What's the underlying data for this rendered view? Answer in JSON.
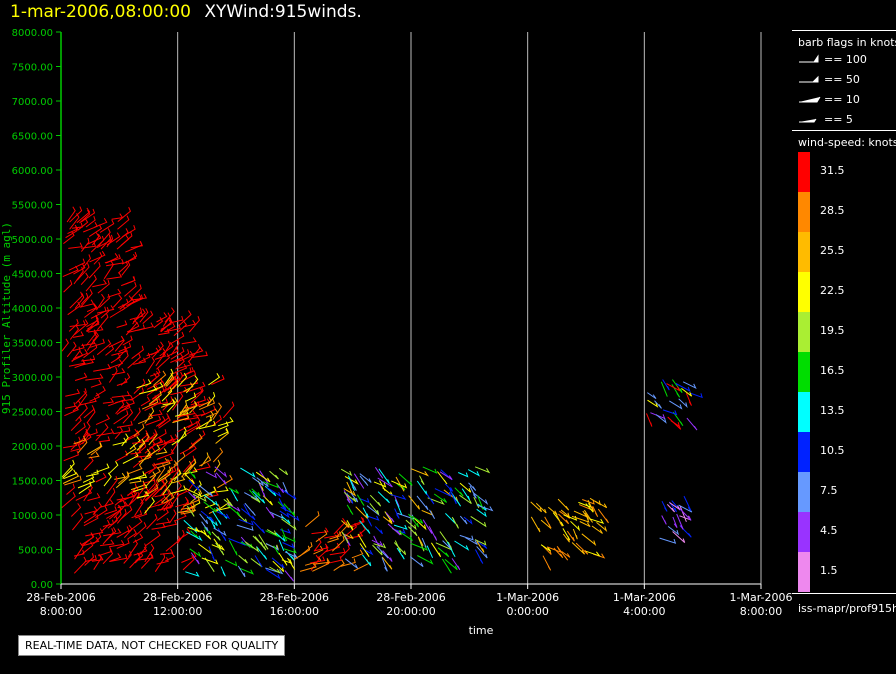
{
  "header": {
    "timestamp": "1-mar-2006,08:00:00",
    "title": "XYWind:915winds."
  },
  "legend": {
    "flags_title": "barb flags in knots",
    "flags": [
      {
        "icon": "barb-flag-100-icon",
        "label": "== 100"
      },
      {
        "icon": "barb-flag-50-icon",
        "label": "== 50"
      },
      {
        "icon": "barb-flag-10-icon",
        "label": "== 10"
      },
      {
        "icon": "barb-flag-5-icon",
        "label": "== 5"
      }
    ],
    "colorbar_title": "wind-speed: knots",
    "colorbar": [
      {
        "value": "31.5",
        "color": "#ff0000"
      },
      {
        "value": "28.5",
        "color": "#ff8800"
      },
      {
        "value": "25.5",
        "color": "#ffbb00"
      },
      {
        "value": "22.5",
        "color": "#ffff00"
      },
      {
        "value": "19.5",
        "color": "#aaee33"
      },
      {
        "value": "16.5",
        "color": "#00dd00"
      },
      {
        "value": "13.5",
        "color": "#00ffff"
      },
      {
        "value": "10.5",
        "color": "#0022ff"
      },
      {
        "value": "7.5",
        "color": "#6699ff"
      },
      {
        "value": "4.5",
        "color": "#9933ff"
      },
      {
        "value": "1.5",
        "color": "#ee88ee"
      }
    ]
  },
  "source_id": "iss-mapr/prof915h",
  "disclaimer": "REAL-TIME DATA, NOT CHECKED FOR QUALITY",
  "chart_data": {
    "type": "scatter",
    "xlabel": "time",
    "ylabel": "915 Profiler Altitude (m agl)",
    "ylim": [
      0,
      8000
    ],
    "yticks": [
      "0.00",
      "500.00",
      "1000.00",
      "1500.00",
      "2000.00",
      "2500.00",
      "3000.00",
      "3500.00",
      "4000.00",
      "4500.00",
      "5000.00",
      "5500.00",
      "6000.00",
      "6500.00",
      "7000.00",
      "7500.00",
      "8000.00"
    ],
    "xticks": [
      {
        "line1": "28-Feb-2006",
        "line2": "8:00:00"
      },
      {
        "line1": "28-Feb-2006",
        "line2": "12:00:00"
      },
      {
        "line1": "28-Feb-2006",
        "line2": "16:00:00"
      },
      {
        "line1": "28-Feb-2006",
        "line2": "20:00:00"
      },
      {
        "line1": "1-Mar-2006",
        "line2": "0:00:00"
      },
      {
        "line1": "1-Mar-2006",
        "line2": "4:00:00"
      },
      {
        "line1": "1-Mar-2006",
        "line2": "8:00:00"
      }
    ],
    "xlim_hours": [
      0,
      24
    ],
    "grid": "vertical lines at x ticks",
    "colors": {
      "axis": "#00cc00",
      "grid": "#bbbbbb",
      "c31": "#ff0000",
      "c28": "#ff8800",
      "c25": "#ffbb00",
      "c22": "#ffff00",
      "c19": "#aaee33",
      "c16": "#00dd00",
      "c13": "#00ffff",
      "c10": "#0022ff",
      "c7": "#6699ff",
      "c4": "#9933ff",
      "c1": "#ee88ee"
    },
    "clusters": [
      {
        "name": "red-upper",
        "t": [
          0.0,
          2.4
        ],
        "h": [
          2000,
          5300
        ],
        "cols": [
          "c31"
        ],
        "dir": 1
      },
      {
        "name": "red-upper2",
        "t": [
          2.4,
          4.6
        ],
        "h": [
          1800,
          3800
        ],
        "cols": [
          "c31"
        ],
        "dir": 1
      },
      {
        "name": "red-lower",
        "t": [
          0.0,
          4.2
        ],
        "h": [
          150,
          1300
        ],
        "cols": [
          "c31"
        ],
        "dir": 1
      },
      {
        "name": "yellow-mid",
        "t": [
          0.0,
          2.5
        ],
        "h": [
          1300,
          2050
        ],
        "cols": [
          "c22",
          "c25",
          "c28",
          "c31"
        ],
        "dir": 1
      },
      {
        "name": "orange-mix",
        "t": [
          2.5,
          5.6
        ],
        "h": [
          1000,
          2900
        ],
        "cols": [
          "c28",
          "c31",
          "c25",
          "c22"
        ],
        "dir": 1
      },
      {
        "name": "mixed-1",
        "t": [
          4.2,
          7.8
        ],
        "h": [
          150,
          1700
        ],
        "cols": [
          "c13",
          "c10",
          "c19",
          "c16",
          "c22",
          "c7",
          "c4"
        ],
        "dir": -1
      },
      {
        "name": "red-2",
        "t": [
          8.0,
          10.2
        ],
        "h": [
          150,
          850
        ],
        "cols": [
          "c31",
          "c28"
        ],
        "dir": 1
      },
      {
        "name": "mixed-2",
        "t": [
          9.6,
          14.3
        ],
        "h": [
          350,
          1700
        ],
        "cols": [
          "c13",
          "c10",
          "c16",
          "c19",
          "c22",
          "c25",
          "c4",
          "c7"
        ],
        "dir": -1
      },
      {
        "name": "yellow-3",
        "t": [
          16.0,
          18.5
        ],
        "h": [
          400,
          1250
        ],
        "cols": [
          "c25",
          "c28",
          "c22"
        ],
        "dir": -1
      },
      {
        "name": "top-right",
        "t": [
          20.0,
          21.6
        ],
        "h": [
          2350,
          3000
        ],
        "cols": [
          "c10",
          "c16",
          "c7",
          "c22",
          "c31",
          "c4"
        ],
        "dir": -1
      },
      {
        "name": "lower-right",
        "t": [
          20.5,
          21.5
        ],
        "h": [
          550,
          1300
        ],
        "cols": [
          "c10",
          "c7",
          "c4",
          "c1"
        ],
        "dir": -1
      }
    ]
  }
}
